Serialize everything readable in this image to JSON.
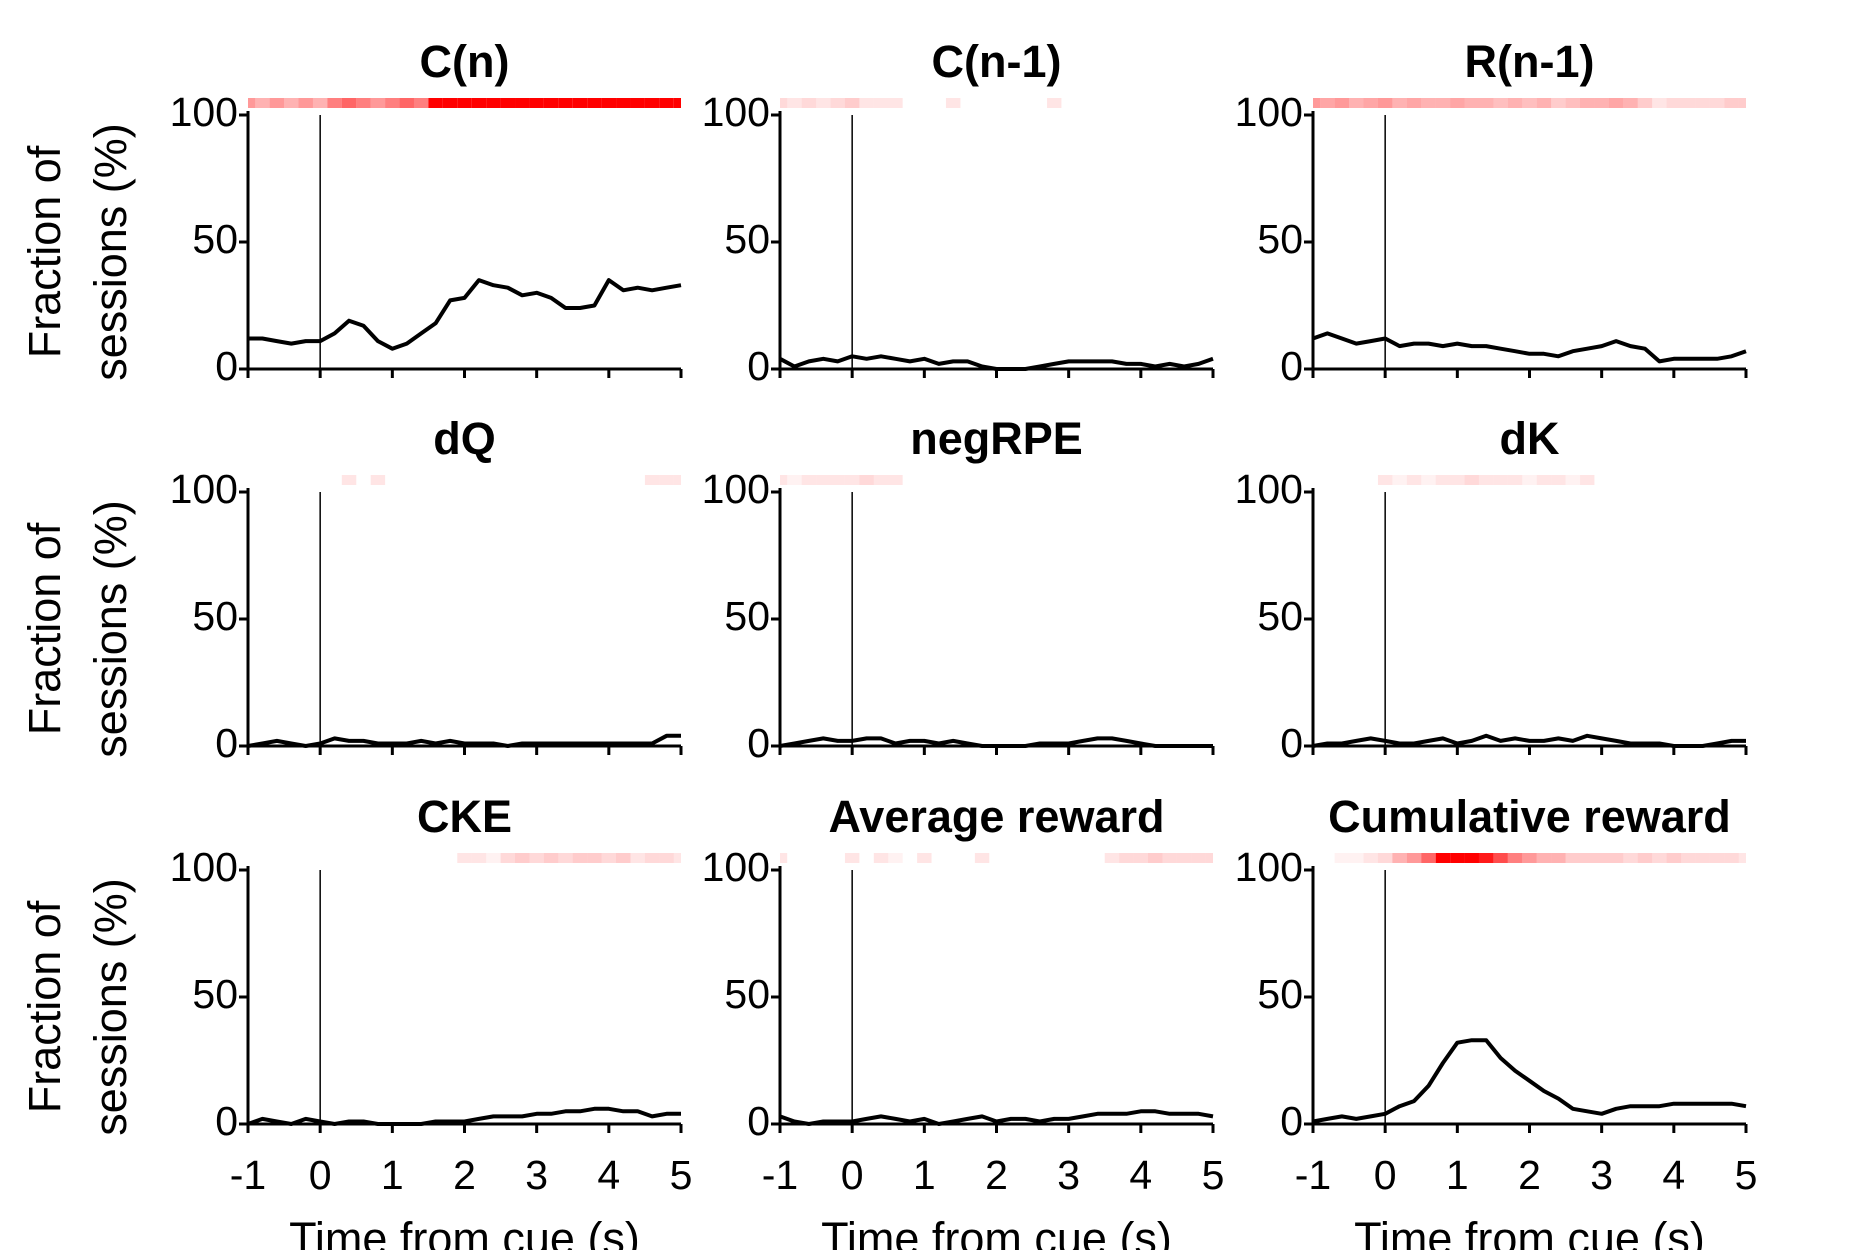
{
  "chart_data": [
    {
      "type": "line",
      "title": "C(n)",
      "y_label": [
        "Fraction of",
        "sessions (%)"
      ],
      "color": "#000000",
      "heat_color": "#ff0000",
      "vline": 0,
      "xlim": [
        -1,
        5
      ],
      "ylim": [
        0,
        100
      ],
      "xticks": [
        -1,
        0,
        1,
        2,
        3,
        4,
        5
      ],
      "yticks": [
        0,
        50,
        100
      ],
      "x": [
        -1,
        -0.8,
        -0.6,
        -0.4,
        -0.2,
        0,
        0.2,
        0.4,
        0.6,
        0.8,
        1,
        1.2,
        1.4,
        1.6,
        1.8,
        2,
        2.2,
        2.4,
        2.6,
        2.8,
        3,
        3.2,
        3.4,
        3.6,
        3.8,
        4,
        4.2,
        4.4,
        4.6,
        4.8,
        5
      ],
      "values": [
        12,
        12,
        11,
        10,
        11,
        11,
        14,
        19,
        17,
        11,
        8,
        10,
        14,
        18,
        27,
        28,
        35,
        33,
        32,
        29,
        30,
        28,
        24,
        24,
        25,
        35,
        31,
        32,
        31,
        32,
        33
      ],
      "heat": [
        0.4,
        0.3,
        0.4,
        0.3,
        0.4,
        0.3,
        0.5,
        0.6,
        0.5,
        0.4,
        0.5,
        0.6,
        0.5,
        1,
        1,
        1,
        1,
        1,
        1,
        1,
        1,
        1,
        1,
        1,
        1,
        1,
        1,
        1,
        1,
        1,
        1
      ]
    },
    {
      "type": "line",
      "title": "C(n-1)",
      "color": "#000000",
      "heat_color": "#ff0000",
      "vline": 0,
      "xlim": [
        -1,
        5
      ],
      "ylim": [
        0,
        100
      ],
      "xticks": [
        -1,
        0,
        1,
        2,
        3,
        4,
        5
      ],
      "yticks": [
        0,
        50,
        100
      ],
      "x": [
        -1,
        -0.8,
        -0.6,
        -0.4,
        -0.2,
        0,
        0.2,
        0.4,
        0.6,
        0.8,
        1,
        1.2,
        1.4,
        1.6,
        1.8,
        2,
        2.2,
        2.4,
        2.6,
        2.8,
        3,
        3.2,
        3.4,
        3.6,
        3.8,
        4,
        4.2,
        4.4,
        4.6,
        4.8,
        5
      ],
      "values": [
        4,
        1,
        3,
        4,
        3,
        5,
        4,
        5,
        4,
        3,
        4,
        2,
        3,
        3,
        1,
        0,
        0,
        0,
        1,
        2,
        3,
        3,
        3,
        3,
        2,
        2,
        1,
        2,
        1,
        2,
        4
      ],
      "heat": [
        0.15,
        0.1,
        0.15,
        0.1,
        0.15,
        0.2,
        0.1,
        0.1,
        0.1,
        0,
        0,
        0,
        0.1,
        0,
        0,
        0,
        0,
        0,
        0,
        0.1,
        0,
        0,
        0,
        0,
        0,
        0,
        0,
        0,
        0,
        0,
        0
      ]
    },
    {
      "type": "line",
      "title": "R(n-1)",
      "color": "#000000",
      "heat_color": "#ff0000",
      "vline": 0,
      "xlim": [
        -1,
        5
      ],
      "ylim": [
        0,
        100
      ],
      "xticks": [
        -1,
        0,
        1,
        2,
        3,
        4,
        5
      ],
      "yticks": [
        0,
        50,
        100
      ],
      "x": [
        -1,
        -0.8,
        -0.6,
        -0.4,
        -0.2,
        0,
        0.2,
        0.4,
        0.6,
        0.8,
        1,
        1.2,
        1.4,
        1.6,
        1.8,
        2,
        2.2,
        2.4,
        2.6,
        2.8,
        3,
        3.2,
        3.4,
        3.6,
        3.8,
        4,
        4.2,
        4.4,
        4.6,
        4.8,
        5
      ],
      "values": [
        12,
        14,
        12,
        10,
        11,
        12,
        9,
        10,
        10,
        9,
        10,
        9,
        9,
        8,
        7,
        6,
        6,
        5,
        7,
        8,
        9,
        11,
        9,
        8,
        3,
        4,
        4,
        4,
        4,
        5,
        7
      ],
      "heat": [
        0.4,
        0.35,
        0.4,
        0.3,
        0.35,
        0.4,
        0.3,
        0.35,
        0.3,
        0.3,
        0.35,
        0.3,
        0.3,
        0.25,
        0.3,
        0.25,
        0.3,
        0.2,
        0.25,
        0.3,
        0.3,
        0.35,
        0.3,
        0.2,
        0.1,
        0.15,
        0.15,
        0.15,
        0.15,
        0.2,
        0.2
      ]
    },
    {
      "type": "line",
      "title": "dQ",
      "y_label": [
        "Fraction of",
        "sessions (%)"
      ],
      "color": "#000000",
      "heat_color": "#ff0000",
      "vline": 0,
      "xlim": [
        -1,
        5
      ],
      "ylim": [
        0,
        100
      ],
      "xticks": [
        -1,
        0,
        1,
        2,
        3,
        4,
        5
      ],
      "yticks": [
        0,
        50,
        100
      ],
      "x": [
        -1,
        -0.8,
        -0.6,
        -0.4,
        -0.2,
        0,
        0.2,
        0.4,
        0.6,
        0.8,
        1,
        1.2,
        1.4,
        1.6,
        1.8,
        2,
        2.2,
        2.4,
        2.6,
        2.8,
        3,
        3.2,
        3.4,
        3.6,
        3.8,
        4,
        4.2,
        4.4,
        4.6,
        4.8,
        5
      ],
      "values": [
        0,
        1,
        2,
        1,
        0,
        1,
        3,
        2,
        2,
        1,
        1,
        1,
        2,
        1,
        2,
        1,
        1,
        1,
        0,
        1,
        1,
        1,
        1,
        1,
        1,
        1,
        1,
        1,
        1,
        4,
        4
      ],
      "heat": [
        0,
        0,
        0,
        0,
        0,
        0,
        0,
        0.1,
        0,
        0.1,
        0,
        0,
        0,
        0,
        0,
        0,
        0,
        0,
        0,
        0,
        0,
        0,
        0,
        0,
        0,
        0,
        0,
        0,
        0.1,
        0.1,
        0.1
      ]
    },
    {
      "type": "line",
      "title": "negRPE",
      "color": "#000000",
      "heat_color": "#ff0000",
      "vline": 0,
      "xlim": [
        -1,
        5
      ],
      "ylim": [
        0,
        100
      ],
      "xticks": [
        -1,
        0,
        1,
        2,
        3,
        4,
        5
      ],
      "yticks": [
        0,
        50,
        100
      ],
      "x": [
        -1,
        -0.8,
        -0.6,
        -0.4,
        -0.2,
        0,
        0.2,
        0.4,
        0.6,
        0.8,
        1,
        1.2,
        1.4,
        1.6,
        1.8,
        2,
        2.2,
        2.4,
        2.6,
        2.8,
        3,
        3.2,
        3.4,
        3.6,
        3.8,
        4,
        4.2,
        4.4,
        4.6,
        4.8,
        5
      ],
      "values": [
        0,
        1,
        2,
        3,
        2,
        2,
        3,
        3,
        1,
        2,
        2,
        1,
        2,
        1,
        0,
        0,
        0,
        0,
        1,
        1,
        1,
        2,
        3,
        3,
        2,
        1,
        0,
        0,
        0,
        0,
        0
      ],
      "heat": [
        0.1,
        0.05,
        0.1,
        0.1,
        0.1,
        0.1,
        0.15,
        0.1,
        0.1,
        0,
        0,
        0,
        0,
        0,
        0,
        0,
        0,
        0,
        0,
        0,
        0,
        0,
        0,
        0,
        0,
        0,
        0,
        0,
        0,
        0,
        0
      ]
    },
    {
      "type": "line",
      "title": "dK",
      "color": "#000000",
      "heat_color": "#ff0000",
      "vline": 0,
      "xlim": [
        -1,
        5
      ],
      "ylim": [
        0,
        100
      ],
      "xticks": [
        -1,
        0,
        1,
        2,
        3,
        4,
        5
      ],
      "yticks": [
        0,
        50,
        100
      ],
      "x": [
        -1,
        -0.8,
        -0.6,
        -0.4,
        -0.2,
        0,
        0.2,
        0.4,
        0.6,
        0.8,
        1,
        1.2,
        1.4,
        1.6,
        1.8,
        2,
        2.2,
        2.4,
        2.6,
        2.8,
        3,
        3.2,
        3.4,
        3.6,
        3.8,
        4,
        4.2,
        4.4,
        4.6,
        4.8,
        5
      ],
      "values": [
        0,
        1,
        1,
        2,
        3,
        2,
        1,
        1,
        2,
        3,
        1,
        2,
        4,
        2,
        3,
        2,
        2,
        3,
        2,
        4,
        3,
        2,
        1,
        1,
        1,
        0,
        0,
        0,
        1,
        2,
        2
      ],
      "heat": [
        0,
        0,
        0,
        0,
        0,
        0.1,
        0.05,
        0.1,
        0.05,
        0.1,
        0.1,
        0.15,
        0.1,
        0.1,
        0.1,
        0.05,
        0.1,
        0.1,
        0.05,
        0.1,
        0,
        0,
        0,
        0,
        0,
        0,
        0,
        0,
        0,
        0,
        0
      ]
    },
    {
      "type": "line",
      "title": "CKE",
      "y_label": [
        "Fraction of",
        "sessions (%)"
      ],
      "x_label": "Time from cue (s)",
      "color": "#000000",
      "heat_color": "#ff0000",
      "vline": 0,
      "xlim": [
        -1,
        5
      ],
      "ylim": [
        0,
        100
      ],
      "xticks": [
        -1,
        0,
        1,
        2,
        3,
        4,
        5
      ],
      "yticks": [
        0,
        50,
        100
      ],
      "x": [
        -1,
        -0.8,
        -0.6,
        -0.4,
        -0.2,
        0,
        0.2,
        0.4,
        0.6,
        0.8,
        1,
        1.2,
        1.4,
        1.6,
        1.8,
        2,
        2.2,
        2.4,
        2.6,
        2.8,
        3,
        3.2,
        3.4,
        3.6,
        3.8,
        4,
        4.2,
        4.4,
        4.6,
        4.8,
        5
      ],
      "values": [
        0,
        2,
        1,
        0,
        2,
        1,
        0,
        1,
        1,
        0,
        0,
        0,
        0,
        1,
        1,
        1,
        2,
        3,
        3,
        3,
        4,
        4,
        5,
        5,
        6,
        6,
        5,
        5,
        3,
        4,
        4
      ],
      "heat": [
        0,
        0,
        0,
        0,
        0,
        0,
        0,
        0,
        0,
        0,
        0,
        0,
        0,
        0,
        0,
        0.1,
        0.1,
        0.05,
        0.15,
        0.2,
        0.15,
        0.2,
        0.15,
        0.2,
        0.2,
        0.15,
        0.2,
        0.1,
        0.15,
        0.15,
        0.1
      ]
    },
    {
      "type": "line",
      "title": "Average reward",
      "x_label": "Time from cue (s)",
      "color": "#000000",
      "heat_color": "#ff0000",
      "vline": 0,
      "xlim": [
        -1,
        5
      ],
      "ylim": [
        0,
        100
      ],
      "xticks": [
        -1,
        0,
        1,
        2,
        3,
        4,
        5
      ],
      "yticks": [
        0,
        50,
        100
      ],
      "x": [
        -1,
        -0.8,
        -0.6,
        -0.4,
        -0.2,
        0,
        0.2,
        0.4,
        0.6,
        0.8,
        1,
        1.2,
        1.4,
        1.6,
        1.8,
        2,
        2.2,
        2.4,
        2.6,
        2.8,
        3,
        3.2,
        3.4,
        3.6,
        3.8,
        4,
        4.2,
        4.4,
        4.6,
        4.8,
        5
      ],
      "values": [
        3,
        1,
        0,
        1,
        1,
        1,
        2,
        3,
        2,
        1,
        2,
        0,
        1,
        2,
        3,
        1,
        2,
        2,
        1,
        2,
        2,
        3,
        4,
        4,
        4,
        5,
        5,
        4,
        4,
        4,
        3
      ],
      "heat": [
        0.1,
        0,
        0,
        0,
        0,
        0.1,
        0,
        0.1,
        0.05,
        0,
        0.1,
        0,
        0,
        0,
        0.1,
        0,
        0,
        0,
        0,
        0,
        0,
        0,
        0,
        0.1,
        0.15,
        0.15,
        0.2,
        0.15,
        0.15,
        0.15,
        0.15
      ]
    },
    {
      "type": "line",
      "title": "Cumulative reward",
      "x_label": "Time from cue (s)",
      "color": "#000000",
      "heat_color": "#ff0000",
      "vline": 0,
      "xlim": [
        -1,
        5
      ],
      "ylim": [
        0,
        100
      ],
      "xticks": [
        -1,
        0,
        1,
        2,
        3,
        4,
        5
      ],
      "yticks": [
        0,
        50,
        100
      ],
      "x": [
        -1,
        -0.8,
        -0.6,
        -0.4,
        -0.2,
        0,
        0.2,
        0.4,
        0.6,
        0.8,
        1,
        1.2,
        1.4,
        1.6,
        1.8,
        2,
        2.2,
        2.4,
        2.6,
        2.8,
        3,
        3.2,
        3.4,
        3.6,
        3.8,
        4,
        4.2,
        4.4,
        4.6,
        4.8,
        5
      ],
      "values": [
        1,
        2,
        3,
        2,
        3,
        4,
        7,
        9,
        15,
        24,
        32,
        33,
        33,
        26,
        21,
        17,
        13,
        10,
        6,
        5,
        4,
        6,
        7,
        7,
        7,
        8,
        8,
        8,
        8,
        8,
        7
      ],
      "heat": [
        0,
        0,
        0.05,
        0.05,
        0.1,
        0.15,
        0.3,
        0.4,
        0.6,
        1,
        1,
        1,
        0.9,
        0.7,
        0.5,
        0.4,
        0.3,
        0.3,
        0.2,
        0.2,
        0.2,
        0.2,
        0.15,
        0.2,
        0.15,
        0.2,
        0.15,
        0.15,
        0.15,
        0.15,
        0.1
      ]
    }
  ]
}
